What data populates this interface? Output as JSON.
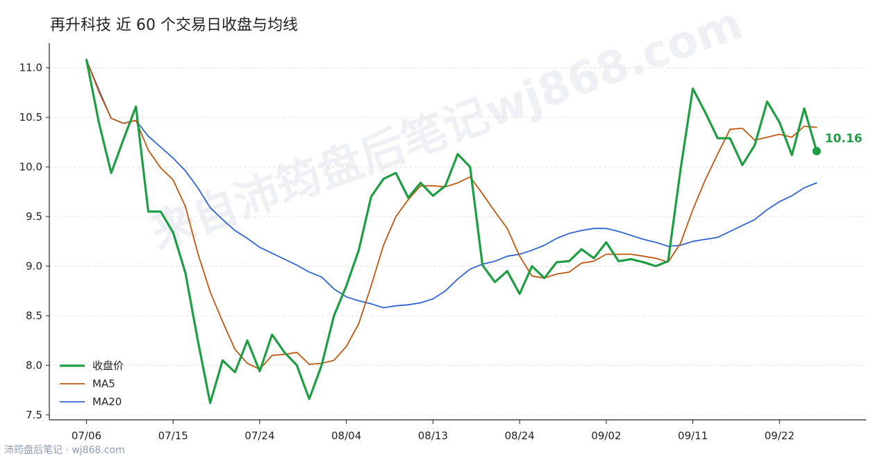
{
  "title": "再升科技 近 60 个交易日收盘与均线",
  "watermark": "来自沛筠盘后笔记wj868.com",
  "footer": "沛筠盘后笔记 · wj868.com",
  "colors": {
    "close": "#1e9e43",
    "ma5": "#c0570f",
    "ma20": "#2e63d8",
    "grid": "#e3e3e3",
    "axis": "#222222"
  },
  "chart_data": {
    "type": "line",
    "title": "再升科技 近 60 个交易日收盘与均线",
    "xlabel": "",
    "ylabel": "",
    "ylim": [
      7.45,
      11.25
    ],
    "yticks": [
      7.5,
      8.0,
      8.5,
      9.0,
      9.5,
      10.0,
      10.5,
      11.0
    ],
    "ytick_labels": [
      "7.5",
      "8.0",
      "8.5",
      "9.0",
      "9.5",
      "10.0",
      "10.5",
      "11.0"
    ],
    "xtick_labels": [
      "07/06",
      "07/15",
      "07/24",
      "08/04",
      "08/13",
      "08/24",
      "09/02",
      "09/11",
      "09/22"
    ],
    "xtick_positions": [
      0,
      7,
      14,
      21,
      28,
      35,
      42,
      49,
      56
    ],
    "xlim": [
      -3,
      63
    ],
    "grid": "horizontal dashed",
    "legend_position": "bottom-left",
    "last_value_label": "10.16",
    "series": [
      {
        "name": "收盘价",
        "values": [
          11.08,
          10.45,
          9.94,
          10.28,
          10.61,
          9.55,
          9.55,
          9.34,
          8.93,
          8.25,
          7.62,
          8.05,
          7.93,
          8.25,
          7.94,
          8.31,
          8.13,
          8.0,
          7.66,
          8.0,
          8.5,
          8.8,
          9.16,
          9.7,
          9.88,
          9.94,
          9.69,
          9.84,
          9.71,
          9.81,
          10.13,
          10.0,
          9.01,
          8.84,
          8.95,
          8.72,
          9.0,
          8.88,
          9.04,
          9.05,
          9.17,
          9.08,
          9.24,
          9.05,
          9.07,
          9.04,
          9.0,
          9.05,
          9.97,
          10.79,
          10.55,
          10.29,
          10.29,
          10.02,
          10.22,
          10.66,
          10.45,
          10.12,
          10.59,
          10.16
        ]
      },
      {
        "name": "MA5",
        "values": [
          11.08,
          10.76,
          10.49,
          10.44,
          10.47,
          10.17,
          9.99,
          9.87,
          9.6,
          9.13,
          8.74,
          8.44,
          8.16,
          8.02,
          7.96,
          8.1,
          8.11,
          8.13,
          8.01,
          8.02,
          8.05,
          8.19,
          8.42,
          8.8,
          9.21,
          9.5,
          9.67,
          9.81,
          9.81,
          9.8,
          9.84,
          9.9,
          9.73,
          9.55,
          9.38,
          9.1,
          8.9,
          8.88,
          8.92,
          8.94,
          9.03,
          9.05,
          9.12,
          9.12,
          9.12,
          9.1,
          9.08,
          9.04,
          9.23,
          9.57,
          9.87,
          10.13,
          10.38,
          10.39,
          10.27,
          10.3,
          10.33,
          10.3,
          10.41,
          10.4
        ]
      },
      {
        "name": "MA20",
        "values": [
          11.08,
          10.78,
          10.49,
          10.44,
          10.47,
          10.31,
          10.2,
          10.09,
          9.96,
          9.79,
          9.59,
          9.47,
          9.36,
          9.28,
          9.19,
          9.13,
          9.07,
          9.01,
          8.94,
          8.89,
          8.77,
          8.69,
          8.65,
          8.62,
          8.58,
          8.6,
          8.61,
          8.63,
          8.67,
          8.75,
          8.87,
          8.97,
          9.02,
          9.05,
          9.1,
          9.12,
          9.16,
          9.21,
          9.28,
          9.33,
          9.36,
          9.38,
          9.38,
          9.35,
          9.31,
          9.27,
          9.24,
          9.2,
          9.21,
          9.25,
          9.27,
          9.29,
          9.35,
          9.41,
          9.47,
          9.57,
          9.65,
          9.71,
          9.79,
          9.84
        ]
      }
    ]
  }
}
